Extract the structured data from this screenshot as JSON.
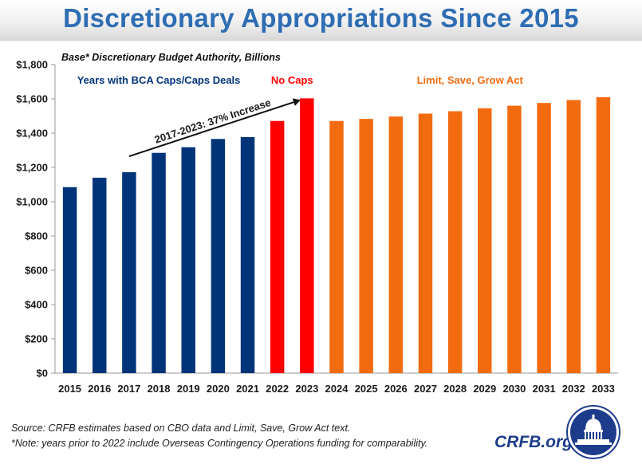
{
  "page": {
    "title": "Discretionary Appropriations Since 2015",
    "subtitle": "Base* Discretionary Budget Authority, Billions",
    "source_note": "Source: CRFB estimates based on CBO data and Limit, Save, Grow Act text.",
    "footnote": "*Note: years prior to 2022 include Overseas Contingency Operations funding for comparability.",
    "brand": "CRFB.org",
    "logo_icon": "capitol-dome-seal-icon"
  },
  "colors": {
    "title": "#2e6db3",
    "caps": "#003479",
    "no_caps": "#ff0000",
    "limit_save_grow": "#f26b0f",
    "brand": "#1d3c8c"
  },
  "chart_data": {
    "type": "bar",
    "title": "Discretionary Appropriations Since 2015",
    "subtitle": "Base* Discretionary Budget Authority, Billions",
    "categories": [
      "2015",
      "2016",
      "2017",
      "2018",
      "2019",
      "2020",
      "2021",
      "2022",
      "2023",
      "2024",
      "2025",
      "2026",
      "2027",
      "2028",
      "2029",
      "2030",
      "2031",
      "2032",
      "2033"
    ],
    "values": [
      1085,
      1140,
      1172,
      1285,
      1318,
      1366,
      1377,
      1471,
      1603,
      1471,
      1483,
      1497,
      1514,
      1528,
      1545,
      1560,
      1576,
      1593,
      1610
    ],
    "groups": [
      {
        "name": "Years with BCA Caps/Caps Deals",
        "color_key": "caps",
        "first_index": 0,
        "last_index": 6
      },
      {
        "name": "No Caps",
        "color_key": "no_caps",
        "first_index": 7,
        "last_index": 8
      },
      {
        "name": "Limit, Save, Grow Act",
        "color_key": "limit_save_grow",
        "first_index": 9,
        "last_index": 18
      }
    ],
    "ylim": [
      0,
      1800
    ],
    "yticks": [
      "$0",
      "$200",
      "$400",
      "$600",
      "$800",
      "$1,000",
      "$1,200",
      "$1,400",
      "$1,600",
      "$1,800"
    ],
    "ytick_values": [
      0,
      200,
      400,
      600,
      800,
      1000,
      1200,
      1400,
      1600,
      1800
    ],
    "grid": false,
    "annotations": [
      {
        "text": "2017-2023: 37% Increase",
        "from_index": 2,
        "to_index": 8
      }
    ]
  }
}
